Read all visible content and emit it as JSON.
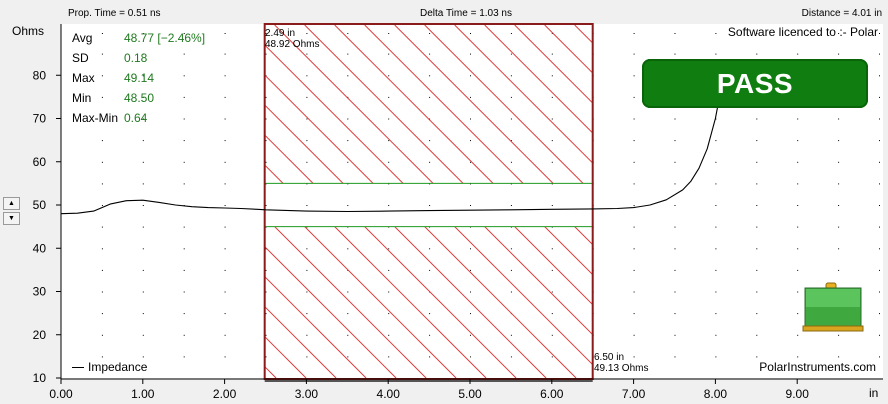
{
  "header": {
    "prop_time": "Prop. Time = 0.51 ns",
    "delta_time": "Delta Time = 1.03 ns",
    "distance": "Distance = 4.01 in"
  },
  "y_unit_label": "Ohms",
  "x_unit_label": "in",
  "stats": [
    {
      "label": "Avg",
      "value": "48.77 [−2.46%]"
    },
    {
      "label": "SD",
      "value": "0.18"
    },
    {
      "label": "Max",
      "value": "49.14"
    },
    {
      "label": "Min",
      "value": "48.50"
    },
    {
      "label": "Max-Min",
      "value": "0.64"
    }
  ],
  "license_text": "Software licenced to :- Polar",
  "company_text": "PolarInstruments.com",
  "result": "PASS",
  "cursors": {
    "left": {
      "line1": "2.49 in",
      "line2": "48.92 Ohms"
    },
    "right": {
      "line1": "6.50 in",
      "line2": "49.13 Ohms"
    }
  },
  "spin": {
    "up": "▲",
    "down": "▼"
  },
  "colors": {
    "trace": "#000000",
    "limit_line": "#1f9a1f",
    "hatch": "#e03a3a",
    "cursor_border": "#8b1a1a",
    "pass": "#0f7d0f",
    "stat_value": "#1f7a1f"
  },
  "chart_data": {
    "type": "line",
    "title": "",
    "xlabel": "in",
    "ylabel": "Ohms",
    "xlim": [
      0,
      10
    ],
    "ylim": [
      10,
      90
    ],
    "x_ticks": [
      0,
      1,
      2,
      3,
      4,
      5,
      6,
      7,
      8,
      9
    ],
    "x_tick_labels": [
      "0.00",
      "1.00",
      "2.00",
      "3.00",
      "4.00",
      "5.00",
      "6.00",
      "7.00",
      "8.00",
      "9.00"
    ],
    "y_ticks": [
      10,
      20,
      30,
      40,
      50,
      60,
      70,
      80
    ],
    "y_tick_labels": [
      "10",
      "20",
      "30",
      "40",
      "50",
      "60",
      "70",
      "80"
    ],
    "grid": "dotted",
    "legend": "bottom-left",
    "series": [
      {
        "name": "Impedance",
        "x": [
          0,
          0.2,
          0.4,
          0.6,
          0.8,
          1.0,
          1.2,
          1.4,
          1.6,
          1.8,
          2.0,
          2.2,
          2.4,
          2.5,
          3.0,
          3.5,
          4.0,
          4.5,
          5.0,
          5.5,
          6.0,
          6.5,
          6.8,
          7.0,
          7.2,
          7.4,
          7.6,
          7.7,
          7.8,
          7.9,
          8.0,
          8.1
        ],
        "y": [
          48.0,
          48.1,
          48.6,
          50.2,
          51.0,
          51.1,
          50.6,
          50.0,
          49.6,
          49.4,
          49.3,
          49.2,
          49.0,
          48.9,
          48.6,
          48.5,
          48.6,
          48.7,
          48.8,
          48.9,
          49.0,
          49.1,
          49.2,
          49.4,
          50.0,
          51.2,
          53.5,
          55.5,
          58.5,
          63.0,
          70.0,
          80.0
        ]
      }
    ],
    "limits": {
      "upper": 55,
      "lower": 45
    },
    "cursor_region": {
      "x_start": 2.49,
      "x_end": 6.5
    }
  }
}
